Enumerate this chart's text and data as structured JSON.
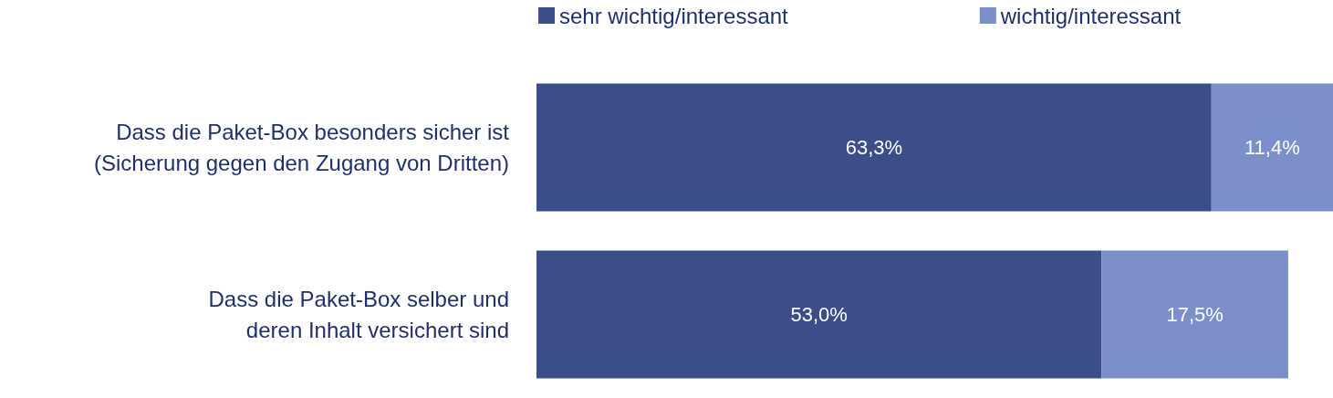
{
  "chart_data": {
    "type": "bar",
    "orientation": "horizontal",
    "stacked": true,
    "legend": "top",
    "categories": [
      "Dass die Paket-Box besonders sicher ist\n(Sicherung gegen den Zugang von Dritten)",
      "Dass die Paket-Box selber und\nderen Inhalt versichert sind"
    ],
    "series": [
      {
        "name": "sehr wichtig/interessant",
        "color": "#3b4e8a",
        "values": [
          63.3,
          53.0
        ],
        "value_labels": [
          "63,3%",
          "53,0%"
        ]
      },
      {
        "name": "wichtig/interessant",
        "color": "#7b8fca",
        "values": [
          11.4,
          17.5
        ],
        "value_labels": [
          "11,4%",
          "17,5%"
        ]
      }
    ]
  }
}
